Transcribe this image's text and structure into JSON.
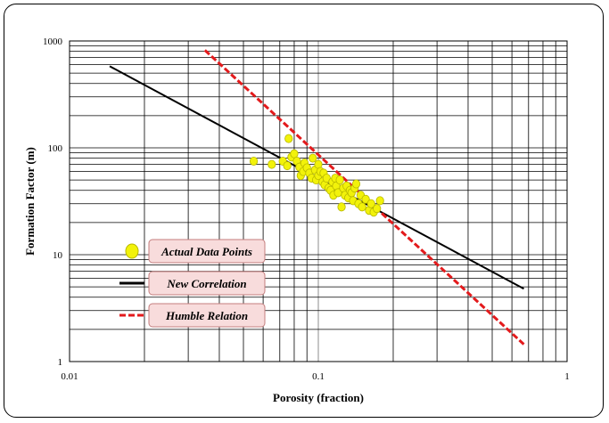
{
  "chart_data": {
    "type": "scatter",
    "xlabel": "Porosity (fraction)",
    "ylabel": "Formation Factor (m)",
    "x_scale": "log",
    "y_scale": "log",
    "xlim": [
      0.01,
      1
    ],
    "ylim": [
      1,
      1000
    ],
    "x_ticks": [
      "0.01",
      "0.1",
      "1"
    ],
    "y_ticks": [
      "1",
      "10",
      "100",
      "1000"
    ],
    "grid": true,
    "legend_position": "left",
    "legend": [
      {
        "label": "Actual Data Points",
        "marker": "circle",
        "color": "#f2f20a"
      },
      {
        "label": "New Correlation",
        "marker": "line",
        "color": "#000000"
      },
      {
        "label": "Humble Relation",
        "marker": "dashed-line",
        "color": "#e31a1c"
      }
    ],
    "series": [
      {
        "name": "Actual Data Points",
        "type": "scatter",
        "color": "#f2f20a",
        "points": [
          [
            0.055,
            75
          ],
          [
            0.065,
            70
          ],
          [
            0.072,
            75
          ],
          [
            0.075,
            68
          ],
          [
            0.076,
            122
          ],
          [
            0.078,
            82
          ],
          [
            0.08,
            88
          ],
          [
            0.082,
            75
          ],
          [
            0.084,
            66
          ],
          [
            0.085,
            55
          ],
          [
            0.087,
            60
          ],
          [
            0.088,
            72
          ],
          [
            0.09,
            65
          ],
          [
            0.092,
            58
          ],
          [
            0.094,
            52
          ],
          [
            0.095,
            80
          ],
          [
            0.097,
            62
          ],
          [
            0.098,
            50
          ],
          [
            0.1,
            55
          ],
          [
            0.1,
            70
          ],
          [
            0.102,
            60
          ],
          [
            0.104,
            48
          ],
          [
            0.105,
            58
          ],
          [
            0.106,
            45
          ],
          [
            0.108,
            52
          ],
          [
            0.11,
            42
          ],
          [
            0.112,
            40
          ],
          [
            0.114,
            48
          ],
          [
            0.115,
            36
          ],
          [
            0.117,
            52
          ],
          [
            0.118,
            44
          ],
          [
            0.12,
            38
          ],
          [
            0.122,
            50
          ],
          [
            0.124,
            28
          ],
          [
            0.126,
            42
          ],
          [
            0.128,
            36
          ],
          [
            0.13,
            44
          ],
          [
            0.132,
            34
          ],
          [
            0.134,
            40
          ],
          [
            0.136,
            38
          ],
          [
            0.138,
            32
          ],
          [
            0.14,
            42
          ],
          [
            0.142,
            46
          ],
          [
            0.145,
            30
          ],
          [
            0.148,
            36
          ],
          [
            0.15,
            28
          ],
          [
            0.155,
            33
          ],
          [
            0.16,
            26
          ],
          [
            0.163,
            30
          ],
          [
            0.167,
            25
          ],
          [
            0.172,
            27
          ],
          [
            0.177,
            32
          ]
        ]
      },
      {
        "name": "New Correlation",
        "type": "line",
        "color": "#000000",
        "points": [
          [
            0.0145,
            580
          ],
          [
            0.67,
            4.8
          ]
        ]
      },
      {
        "name": "Humble Relation",
        "type": "dashed-line",
        "color": "#e31a1c",
        "points": [
          [
            0.035,
            820
          ],
          [
            0.67,
            1.45
          ]
        ]
      }
    ]
  }
}
